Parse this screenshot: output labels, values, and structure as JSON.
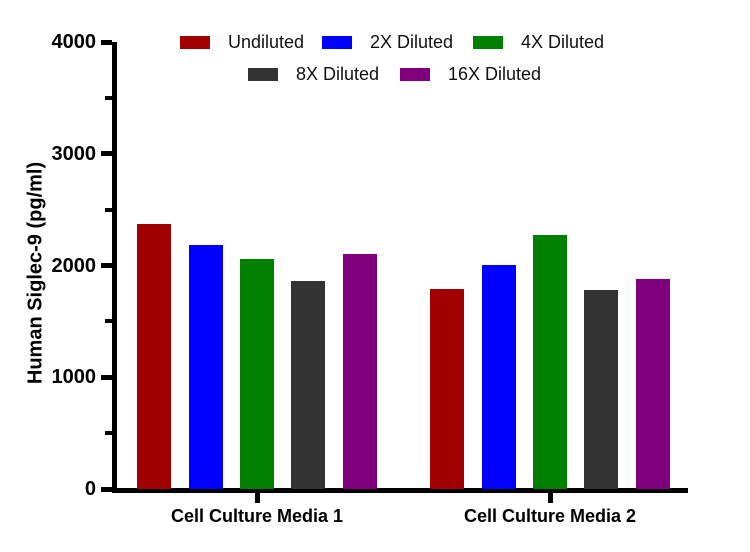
{
  "chart_data": {
    "type": "bar",
    "title": "",
    "xlabel": "",
    "ylabel": "Human Siglec-9 (pg/ml)",
    "ylim": [
      0,
      4000
    ],
    "yticks": [
      0,
      1000,
      2000,
      3000,
      4000
    ],
    "minor_yticks": [
      500,
      1500,
      2500,
      3500
    ],
    "grid": false,
    "legend_position": "top",
    "axis_color": "#000000",
    "categories": [
      "Cell Culture Media 1",
      "Cell Culture Media 2"
    ],
    "series": [
      {
        "name": "Undiluted",
        "color": "#A00000",
        "values": [
          2375,
          1790
        ]
      },
      {
        "name": "2X Diluted",
        "color": "#0000FF",
        "values": [
          2180,
          2005
        ]
      },
      {
        "name": "4X Diluted",
        "color": "#008000",
        "values": [
          2055,
          2275
        ]
      },
      {
        "name": "8X Diluted",
        "color": "#333333",
        "values": [
          1865,
          1785
        ]
      },
      {
        "name": "16X Diluted",
        "color": "#800080",
        "values": [
          2100,
          1875
        ]
      }
    ]
  }
}
